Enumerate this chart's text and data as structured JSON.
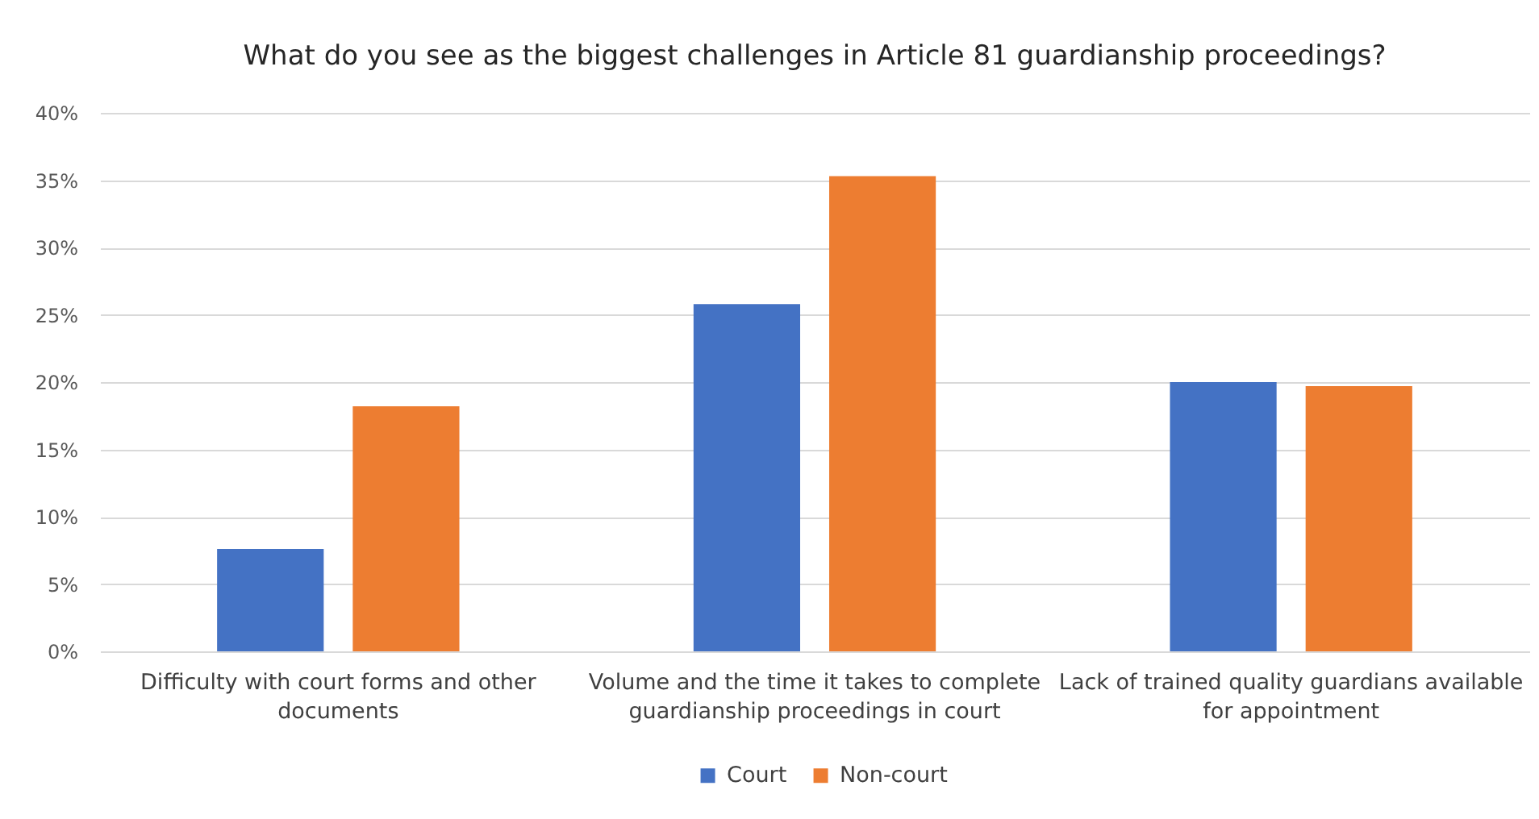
{
  "chart_data": {
    "type": "bar",
    "title": "What do you see as the biggest challenges in Article 81 guardianship proceedings?",
    "categories": [
      "Difficulty with court forms and other documents",
      "Volume and the time it takes to complete guardianship proceedings in court",
      "Lack of trained quality guardians available for appointment"
    ],
    "series": [
      {
        "name": "Court",
        "color": "#4472c4",
        "values": [
          7.6,
          25.8,
          20.0
        ]
      },
      {
        "name": "Non-court",
        "color": "#ed7d31",
        "values": [
          18.2,
          35.3,
          19.7
        ]
      }
    ],
    "ylim": [
      0,
      40
    ],
    "yticks": [
      {
        "value": 0,
        "label": "0%"
      },
      {
        "value": 5,
        "label": "5%"
      },
      {
        "value": 10,
        "label": "10%"
      },
      {
        "value": 15,
        "label": "15%"
      },
      {
        "value": 20,
        "label": "20%"
      },
      {
        "value": 25,
        "label": "25%"
      },
      {
        "value": 30,
        "label": "30%"
      },
      {
        "value": 35,
        "label": "35%"
      },
      {
        "value": 40,
        "label": "40%"
      }
    ],
    "grid": "y",
    "legend": "bottom"
  }
}
